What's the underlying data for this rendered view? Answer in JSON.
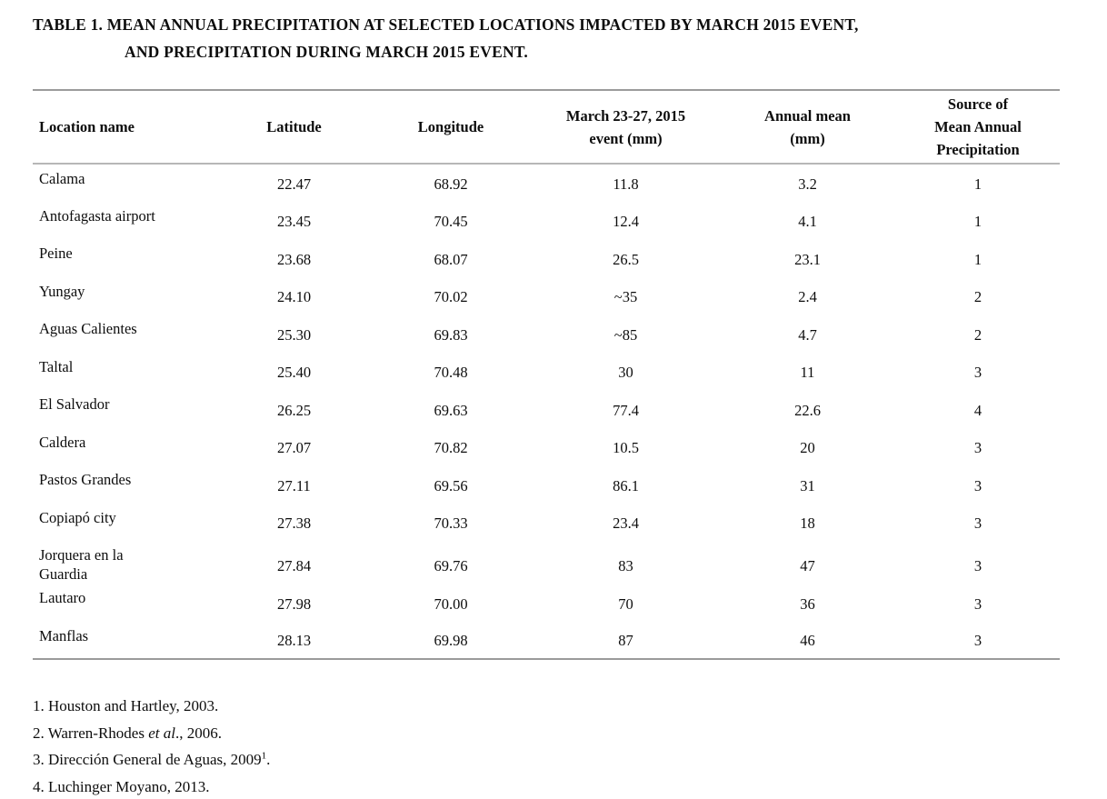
{
  "page": {
    "background": "#ffffff",
    "text_color": "#0d0d0d",
    "rule_color": "#9b9b9b"
  },
  "title": {
    "line1": "TABLE 1. MEAN ANNUAL PRECIPITATION AT SELECTED LOCATIONS IMPACTED BY MARCH 2015 EVENT,",
    "line2": "AND PRECIPITATION DURING MARCH 2015 EVENT."
  },
  "table": {
    "columns": [
      {
        "lines": [
          "Location name"
        ]
      },
      {
        "lines": [
          "Latitude"
        ]
      },
      {
        "lines": [
          "Longitude"
        ]
      },
      {
        "lines": [
          "March 23-27, 2015",
          "event (mm)"
        ]
      },
      {
        "lines": [
          "Annual mean",
          "(mm)"
        ]
      },
      {
        "lines": [
          "Source of",
          "Mean Annual",
          "Precipitation"
        ]
      }
    ],
    "rows": [
      {
        "location": "Calama",
        "latitude": "22.47",
        "longitude": "68.92",
        "event": "11.8",
        "annual": "3.2",
        "source": "1"
      },
      {
        "location": "Antofagasta airport",
        "latitude": "23.45",
        "longitude": "70.45",
        "event": "12.4",
        "annual": "4.1",
        "source": "1"
      },
      {
        "location": "Peine",
        "latitude": "23.68",
        "longitude": "68.07",
        "event": "26.5",
        "annual": "23.1",
        "source": "1"
      },
      {
        "location": "Yungay",
        "latitude": "24.10",
        "longitude": "70.02",
        "event": "~35",
        "annual": "2.4",
        "source": "2"
      },
      {
        "location": "Aguas Calientes",
        "latitude": "25.30",
        "longitude": "69.83",
        "event": "~85",
        "annual": "4.7",
        "source": "2"
      },
      {
        "location": "Taltal",
        "latitude": "25.40",
        "longitude": "70.48",
        "event": "30",
        "annual": "11",
        "source": "3"
      },
      {
        "location": "El Salvador",
        "latitude": "26.25",
        "longitude": "69.63",
        "event": "77.4",
        "annual": "22.6",
        "source": "4"
      },
      {
        "location": "Caldera",
        "latitude": "27.07",
        "longitude": "70.82",
        "event": "10.5",
        "annual": "20",
        "source": "3"
      },
      {
        "location": "Pastos Grandes",
        "latitude": "27.11",
        "longitude": "69.56",
        "event": "86.1",
        "annual": "31",
        "source": "3"
      },
      {
        "location": "Copiapó city",
        "latitude": "27.38",
        "longitude": "70.33",
        "event": "23.4",
        "annual": "18",
        "source": "3"
      },
      {
        "location": "Jorquera en la",
        "location2": "Guardia",
        "latitude": "27.84",
        "longitude": "69.76",
        "event": "83",
        "annual": "47",
        "source": "3"
      },
      {
        "location": "Lautaro",
        "latitude": "27.98",
        "longitude": "70.00",
        "event": "70",
        "annual": "36",
        "source": "3"
      },
      {
        "location": "Manflas",
        "latitude": "28.13",
        "longitude": "69.98",
        "event": "87",
        "annual": "46",
        "source": "3"
      }
    ]
  },
  "footnotes": {
    "f1": "1. Houston and Hartley, 2003.",
    "f2_prefix": "2. Warren-Rhodes ",
    "f2_italic": "et al",
    "f2_suffix": "., 2006.",
    "f3_prefix": "3. Dirección General de Aguas, 2009",
    "f3_sup": "1",
    "f3_suffix": ".",
    "f4": "4. Luchinger Moyano, 2013."
  }
}
